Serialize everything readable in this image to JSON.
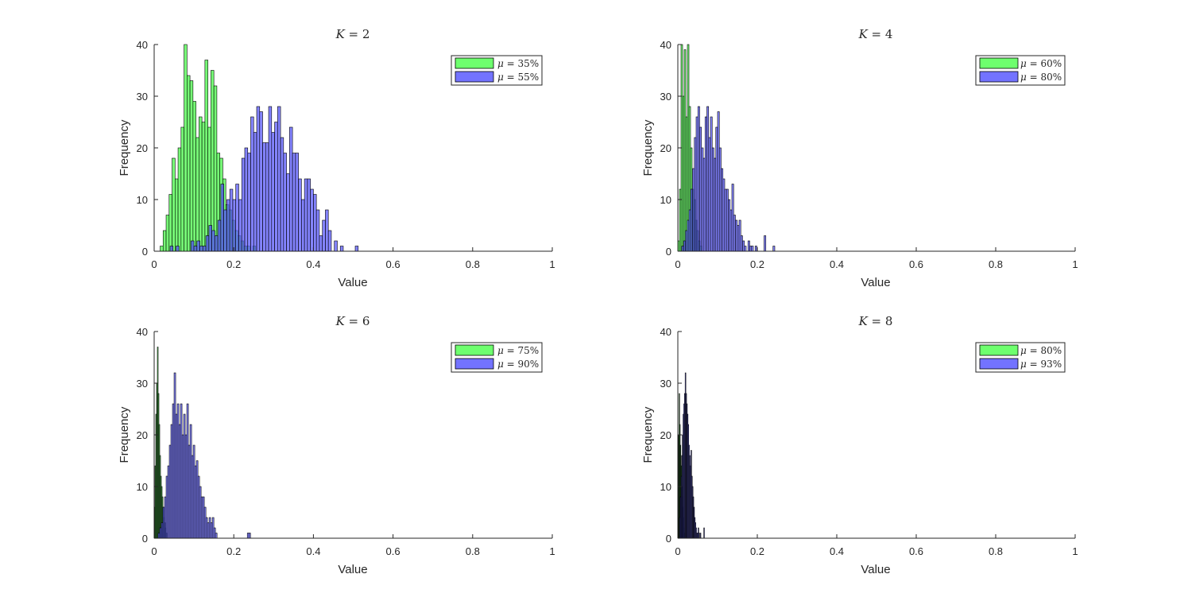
{
  "figure": {
    "colors": {
      "series_a": "#5eff5e",
      "series_b": "#5b5bff",
      "edge": "#000000",
      "axis": "#262626"
    }
  },
  "chart_data": [
    {
      "type": "bar",
      "title": "K = 2",
      "title_var": "K",
      "title_eq": " = 2",
      "xlabel": "Value",
      "ylabel": "Frequency",
      "xlim": [
        0,
        1
      ],
      "ylim": [
        0,
        40
      ],
      "xticks": [
        "0",
        "0.2",
        "0.4",
        "0.6",
        "0.8",
        "1"
      ],
      "yticks": [
        "0",
        "10",
        "20",
        "30",
        "40"
      ],
      "legend_position": "top-right",
      "series": [
        {
          "name": "μ = 35%",
          "mu": "μ",
          "label": " = 35%",
          "color": "#5eff5e",
          "opacity": 0.85,
          "bin_start": 0.015,
          "bin_width": 0.0075,
          "values": [
            1,
            4,
            7,
            11,
            18,
            14,
            20,
            24,
            40,
            34,
            33,
            29,
            22,
            26,
            25,
            37,
            24,
            35,
            32,
            19,
            18,
            14,
            9,
            8,
            6,
            4,
            3,
            2,
            1,
            1,
            0,
            1
          ]
        },
        {
          "name": "μ = 55%",
          "mu": "μ",
          "label": " = 55%",
          "color": "#5b5bff",
          "opacity": 0.75,
          "bin_start": 0.04,
          "bin_width": 0.0075,
          "values": [
            1,
            0,
            1,
            0,
            0,
            0,
            0,
            2,
            1,
            2,
            1,
            1,
            3,
            5,
            4,
            3,
            6,
            13,
            8,
            10,
            12,
            10,
            13,
            10,
            18,
            20,
            19,
            26,
            23,
            28,
            27,
            21,
            21,
            28,
            23,
            25,
            28,
            22,
            19,
            15,
            24,
            19,
            19,
            14,
            10,
            14,
            14,
            12,
            11,
            8,
            3,
            6,
            8,
            4,
            0,
            2,
            0,
            1,
            0,
            0,
            0,
            0,
            1
          ]
        }
      ]
    },
    {
      "type": "bar",
      "title": "K = 4",
      "title_var": "K",
      "title_eq": " = 4",
      "xlabel": "Value",
      "ylabel": "Frequency",
      "xlim": [
        0,
        1
      ],
      "ylim": [
        0,
        40
      ],
      "xticks": [
        "0",
        "0.2",
        "0.4",
        "0.6",
        "0.8",
        "1"
      ],
      "yticks": [
        "0",
        "10",
        "20",
        "30",
        "40"
      ],
      "legend_position": "top-right",
      "series": [
        {
          "name": "μ = 60%",
          "mu": "μ",
          "label": " = 60%",
          "color": "#5eff5e",
          "opacity": 0.85,
          "bin_start": 0.0,
          "bin_width": 0.004,
          "values": [
            2,
            12,
            40,
            30,
            39,
            26,
            40,
            28,
            20,
            12,
            10,
            6,
            4,
            2,
            1
          ]
        },
        {
          "name": "μ = 80%",
          "mu": "μ",
          "label": " = 80%",
          "color": "#5b5bff",
          "opacity": 0.75,
          "bin_start": 0.01,
          "bin_width": 0.0045,
          "values": [
            1,
            2,
            4,
            6,
            8,
            12,
            16,
            22,
            26,
            28,
            24,
            20,
            18,
            26,
            28,
            22,
            26,
            20,
            18,
            24,
            27,
            20,
            16,
            14,
            12,
            12,
            10,
            8,
            13,
            7,
            6,
            5,
            6,
            3,
            2,
            1,
            0,
            2,
            1,
            1,
            0,
            1,
            0,
            0,
            0,
            0,
            3,
            0,
            0,
            0,
            0,
            1
          ]
        }
      ]
    },
    {
      "type": "bar",
      "title": "K = 6",
      "title_var": "K",
      "title_eq": " = 6",
      "xlabel": "Value",
      "ylabel": "Frequency",
      "xlim": [
        0,
        1
      ],
      "ylim": [
        0,
        40
      ],
      "xticks": [
        "0",
        "0.2",
        "0.4",
        "0.6",
        "0.8",
        "1"
      ],
      "yticks": [
        "0",
        "10",
        "20",
        "30",
        "40"
      ],
      "legend_position": "top-right",
      "series": [
        {
          "name": "μ = 75%",
          "mu": "μ",
          "label": " = 75%",
          "color": "#5eff5e",
          "opacity": 0.85,
          "bin_start": 0.0,
          "bin_width": 0.002,
          "values": [
            6,
            14,
            24,
            30,
            37,
            28,
            22,
            16,
            12,
            10,
            8,
            6,
            4,
            3,
            2,
            1
          ]
        },
        {
          "name": "μ = 90%",
          "mu": "μ",
          "label": " = 90%",
          "color": "#5b5bff",
          "opacity": 0.75,
          "bin_start": 0.01,
          "bin_width": 0.004,
          "values": [
            1,
            2,
            3,
            6,
            8,
            12,
            14,
            18,
            22,
            26,
            32,
            24,
            26,
            22,
            26,
            20,
            24,
            20,
            26,
            18,
            22,
            16,
            18,
            14,
            15,
            12,
            10,
            8,
            8,
            6,
            4,
            3,
            4,
            3,
            4,
            2,
            1,
            0,
            0,
            0,
            0,
            0,
            0,
            0,
            0,
            0,
            0,
            0,
            0,
            0,
            0,
            0,
            0,
            0,
            0,
            0,
            1,
            1
          ]
        }
      ]
    },
    {
      "type": "bar",
      "title": "K = 8",
      "title_var": "K",
      "title_eq": " = 8",
      "xlabel": "Value",
      "ylabel": "Frequency",
      "xlim": [
        0,
        1
      ],
      "ylim": [
        0,
        40
      ],
      "xticks": [
        "0",
        "0.2",
        "0.4",
        "0.6",
        "0.8",
        "1"
      ],
      "yticks": [
        "0",
        "10",
        "20",
        "30",
        "40"
      ],
      "legend_position": "top-right",
      "series": [
        {
          "name": "μ = 80%",
          "mu": "μ",
          "label": " = 80%",
          "color": "#5eff5e",
          "opacity": 0.85,
          "bin_start": 0.0,
          "bin_width": 0.0015,
          "values": [
            12,
            20,
            28,
            22,
            18,
            14,
            10,
            8,
            6,
            4,
            2,
            1
          ]
        },
        {
          "name": "μ = 93%",
          "mu": "μ",
          "label": " = 93%",
          "color": "#5b5bff",
          "opacity": 0.75,
          "bin_start": 0.004,
          "bin_width": 0.0018,
          "values": [
            4,
            8,
            12,
            16,
            20,
            24,
            26,
            28,
            32,
            28,
            26,
            24,
            22,
            18,
            16,
            14,
            17,
            12,
            10,
            8,
            6,
            4,
            3,
            2,
            1,
            1,
            2,
            1,
            0,
            1,
            0,
            0,
            0,
            0,
            2
          ]
        }
      ]
    }
  ]
}
